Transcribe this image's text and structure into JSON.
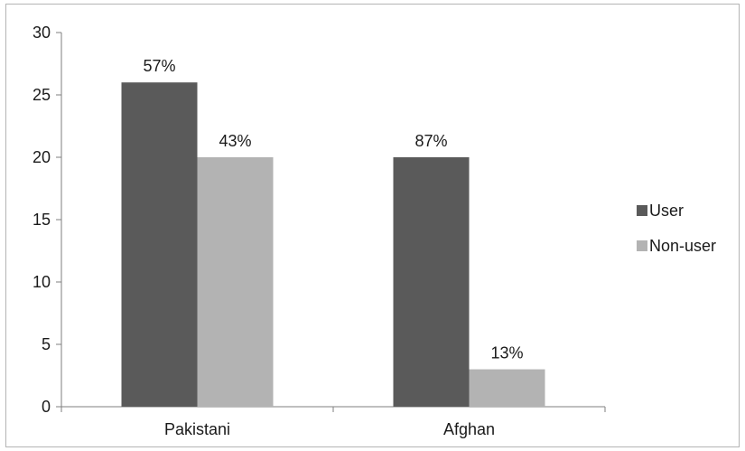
{
  "chart_data": {
    "type": "bar",
    "categories": [
      "Pakistani",
      "Afghan"
    ],
    "series": [
      {
        "name": "User",
        "values": [
          26,
          20
        ],
        "labels": [
          "57%",
          "87%"
        ],
        "color": "#5a5a5a"
      },
      {
        "name": "Non-user",
        "values": [
          20,
          3
        ],
        "labels": [
          "43%",
          "13%"
        ],
        "color": "#b3b3b3"
      }
    ],
    "ylim": [
      0,
      30
    ],
    "yticks": [
      0,
      5,
      10,
      15,
      20,
      25,
      30
    ],
    "grid": false,
    "legend_position": "right"
  }
}
